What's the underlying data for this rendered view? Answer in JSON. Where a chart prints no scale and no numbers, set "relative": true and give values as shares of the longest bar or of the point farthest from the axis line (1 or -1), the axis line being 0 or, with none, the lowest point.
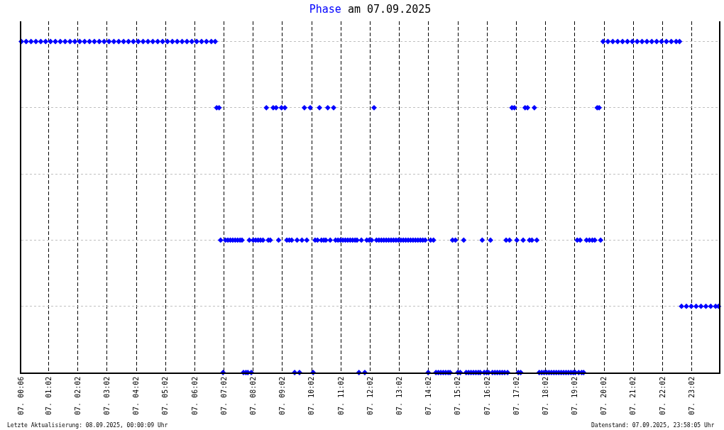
{
  "chart_data": {
    "type": "scatter",
    "title": "Phase am 07.09.2025",
    "annotations": [
      "Letzte Aktualisierung: 08.09.2025, 00:00:09 Uhr",
      "Datenstand: 07.09.2025, 23:58:05 Uhr"
    ],
    "relative": true,
    "marker": "diamond",
    "grid": true,
    "xlim": [
      "2025-09-07T00:06",
      "2025-09-07T23:58"
    ],
    "xticks": [
      {
        "value": "2025-09-07T00:06",
        "label": "07. 00:06"
      },
      {
        "value": "2025-09-07T01:02",
        "label": "07. 01:02"
      },
      {
        "value": "2025-09-07T02:02",
        "label": "07. 02:02"
      },
      {
        "value": "2025-09-07T03:02",
        "label": "07. 03:02"
      },
      {
        "value": "2025-09-07T04:02",
        "label": "07. 04:02"
      },
      {
        "value": "2025-09-07T05:02",
        "label": "07. 05:02"
      },
      {
        "value": "2025-09-07T06:02",
        "label": "07. 06:02"
      },
      {
        "value": "2025-09-07T07:02",
        "label": "07. 07:02"
      },
      {
        "value": "2025-09-07T08:02",
        "label": "07. 08:02"
      },
      {
        "value": "2025-09-07T09:02",
        "label": "07. 09:02"
      },
      {
        "value": "2025-09-07T10:02",
        "label": "07. 10:02"
      },
      {
        "value": "2025-09-07T11:02",
        "label": "07. 11:02"
      },
      {
        "value": "2025-09-07T12:02",
        "label": "07. 12:02"
      },
      {
        "value": "2025-09-07T13:02",
        "label": "07. 13:02"
      },
      {
        "value": "2025-09-07T14:02",
        "label": "07. 14:02"
      },
      {
        "value": "2025-09-07T15:02",
        "label": "07. 15:02"
      },
      {
        "value": "2025-09-07T16:02",
        "label": "07. 16:02"
      },
      {
        "value": "2025-09-07T17:02",
        "label": "07. 17:02"
      },
      {
        "value": "2025-09-07T18:02",
        "label": "07. 18:02"
      },
      {
        "value": "2025-09-07T19:02",
        "label": "07. 19:02"
      },
      {
        "value": "2025-09-07T20:02",
        "label": "07. 20:02"
      },
      {
        "value": "2025-09-07T21:02",
        "label": "07. 21:02"
      },
      {
        "value": "2025-09-07T22:02",
        "label": "07. 22:02"
      },
      {
        "value": "2025-09-07T23:02",
        "label": "07. 23:02"
      }
    ],
    "x": [
      "2025-09-07T00:06",
      "2025-09-07T00:16",
      "2025-09-07T00:26",
      "2025-09-07T00:36",
      "2025-09-07T00:46",
      "2025-09-07T00:56",
      "2025-09-07T01:06",
      "2025-09-07T01:16",
      "2025-09-07T01:26",
      "2025-09-07T01:36",
      "2025-09-07T01:46",
      "2025-09-07T01:56",
      "2025-09-07T02:06",
      "2025-09-07T02:16",
      "2025-09-07T02:26",
      "2025-09-07T02:36",
      "2025-09-07T02:46",
      "2025-09-07T02:56",
      "2025-09-07T03:06",
      "2025-09-07T03:16",
      "2025-09-07T03:26",
      "2025-09-07T03:36",
      "2025-09-07T03:46",
      "2025-09-07T03:56",
      "2025-09-07T04:06",
      "2025-09-07T04:16",
      "2025-09-07T04:26",
      "2025-09-07T04:36",
      "2025-09-07T04:46",
      "2025-09-07T04:56",
      "2025-09-07T05:06",
      "2025-09-07T05:16",
      "2025-09-07T05:26",
      "2025-09-07T05:36",
      "2025-09-07T05:46",
      "2025-09-07T05:56",
      "2025-09-07T06:06",
      "2025-09-07T06:16",
      "2025-09-07T06:26",
      "2025-09-07T06:36",
      "2025-09-07T06:44",
      "2025-09-07T06:47",
      "2025-09-07T06:52",
      "2025-09-07T06:55",
      "2025-09-07T07:00",
      "2025-09-07T07:05",
      "2025-09-07T07:10",
      "2025-09-07T07:15",
      "2025-09-07T07:20",
      "2025-09-07T07:25",
      "2025-09-07T07:30",
      "2025-09-07T07:35",
      "2025-09-07T07:39",
      "2025-09-07T07:42",
      "2025-09-07T07:47",
      "2025-09-07T07:51",
      "2025-09-07T07:54",
      "2025-09-07T07:58",
      "2025-09-07T08:02",
      "2025-09-07T08:07",
      "2025-09-07T08:12",
      "2025-09-07T08:17",
      "2025-09-07T08:22",
      "2025-09-07T08:29",
      "2025-09-07T08:33",
      "2025-09-07T08:37",
      "2025-09-07T08:43",
      "2025-09-07T08:49",
      "2025-09-07T08:54",
      "2025-09-07T09:00",
      "2025-09-07T09:07",
      "2025-09-07T09:11",
      "2025-09-07T09:16",
      "2025-09-07T09:21",
      "2025-09-07T09:27",
      "2025-09-07T09:32",
      "2025-09-07T09:37",
      "2025-09-07T09:42",
      "2025-09-07T09:47",
      "2025-09-07T09:52",
      "2025-09-07T09:59",
      "2025-09-07T10:05",
      "2025-09-07T10:09",
      "2025-09-07T10:14",
      "2025-09-07T10:18",
      "2025-09-07T10:22",
      "2025-09-07T10:27",
      "2025-09-07T10:31",
      "2025-09-07T10:35",
      "2025-09-07T10:40",
      "2025-09-07T10:47",
      "2025-09-07T10:51",
      "2025-09-07T10:56",
      "2025-09-07T11:01",
      "2025-09-07T11:06",
      "2025-09-07T11:11",
      "2025-09-07T11:16",
      "2025-09-07T11:21",
      "2025-09-07T11:26",
      "2025-09-07T11:31",
      "2025-09-07T11:35",
      "2025-09-07T11:39",
      "2025-09-07T11:44",
      "2025-09-07T11:51",
      "2025-09-07T11:55",
      "2025-09-07T12:00",
      "2025-09-07T12:05",
      "2025-09-07T12:10",
      "2025-09-07T12:15",
      "2025-09-07T12:20",
      "2025-09-07T12:25",
      "2025-09-07T12:30",
      "2025-09-07T12:35",
      "2025-09-07T12:40",
      "2025-09-07T12:45",
      "2025-09-07T12:50",
      "2025-09-07T12:55",
      "2025-09-07T13:00",
      "2025-09-07T13:05",
      "2025-09-07T13:10",
      "2025-09-07T13:15",
      "2025-09-07T13:20",
      "2025-09-07T13:25",
      "2025-09-07T13:30",
      "2025-09-07T13:35",
      "2025-09-07T13:40",
      "2025-09-07T13:45",
      "2025-09-07T13:50",
      "2025-09-07T13:55",
      "2025-09-07T14:01",
      "2025-09-07T14:06",
      "2025-09-07T14:12",
      "2025-09-07T14:17",
      "2025-09-07T14:22",
      "2025-09-07T14:27",
      "2025-09-07T14:32",
      "2025-09-07T14:37",
      "2025-09-07T14:42",
      "2025-09-07T14:46",
      "2025-09-07T14:51",
      "2025-09-07T14:57",
      "2025-09-07T15:02",
      "2025-09-07T15:07",
      "2025-09-07T15:14",
      "2025-09-07T15:19",
      "2025-09-07T15:24",
      "2025-09-07T15:29",
      "2025-09-07T15:34",
      "2025-09-07T15:39",
      "2025-09-07T15:44",
      "2025-09-07T15:48",
      "2025-09-07T15:52",
      "2025-09-07T15:56",
      "2025-09-07T16:01",
      "2025-09-07T16:05",
      "2025-09-07T16:09",
      "2025-09-07T16:13",
      "2025-09-07T16:18",
      "2025-09-07T16:23",
      "2025-09-07T16:28",
      "2025-09-07T16:33",
      "2025-09-07T16:38",
      "2025-09-07T16:41",
      "2025-09-07T16:44",
      "2025-09-07T16:48",
      "2025-09-07T16:53",
      "2025-09-07T16:58",
      "2025-09-07T17:03",
      "2025-09-07T17:06",
      "2025-09-07T17:11",
      "2025-09-07T17:16",
      "2025-09-07T17:20",
      "2025-09-07T17:25",
      "2025-09-07T17:29",
      "2025-09-07T17:34",
      "2025-09-07T17:39",
      "2025-09-07T17:44",
      "2025-09-07T17:49",
      "2025-09-07T17:54",
      "2025-09-07T17:59",
      "2025-09-07T18:04",
      "2025-09-07T18:09",
      "2025-09-07T18:14",
      "2025-09-07T18:19",
      "2025-09-07T18:24",
      "2025-09-07T18:29",
      "2025-09-07T18:34",
      "2025-09-07T18:39",
      "2025-09-07T18:44",
      "2025-09-07T18:49",
      "2025-09-07T18:54",
      "2025-09-07T18:59",
      "2025-09-07T19:03",
      "2025-09-07T19:07",
      "2025-09-07T19:10",
      "2025-09-07T19:13",
      "2025-09-07T19:16",
      "2025-09-07T19:20",
      "2025-09-07T19:26",
      "2025-09-07T19:32",
      "2025-09-07T19:38",
      "2025-09-07T19:43",
      "2025-09-07T19:48",
      "2025-09-07T19:52",
      "2025-09-07T19:55",
      "2025-09-07T20:00",
      "2025-09-07T20:10",
      "2025-09-07T20:20",
      "2025-09-07T20:30",
      "2025-09-07T20:40",
      "2025-09-07T20:50",
      "2025-09-07T21:00",
      "2025-09-07T21:10",
      "2025-09-07T21:20",
      "2025-09-07T21:30",
      "2025-09-07T21:40",
      "2025-09-07T21:50",
      "2025-09-07T22:00",
      "2025-09-07T22:10",
      "2025-09-07T22:20",
      "2025-09-07T22:30",
      "2025-09-07T22:37",
      "2025-09-07T22:41",
      "2025-09-07T22:51",
      "2025-09-07T23:01",
      "2025-09-07T23:11",
      "2025-09-07T23:21",
      "2025-09-07T23:31",
      "2025-09-07T23:41",
      "2025-09-07T23:51",
      "2025-09-07T23:57"
    ],
    "series": [
      {
        "color": "#0000ff",
        "values": [
          1,
          1,
          1,
          1,
          1,
          1,
          1,
          1,
          1,
          1,
          1,
          1,
          1,
          1,
          1,
          1,
          1,
          1,
          1,
          1,
          1,
          1,
          1,
          1,
          1,
          1,
          1,
          1,
          1,
          1,
          1,
          1,
          1,
          1,
          1,
          1,
          1,
          1,
          1,
          1,
          1,
          0.8,
          0.8,
          0.4,
          0,
          0.4,
          0.4,
          0.4,
          0.4,
          0.4,
          0.4,
          0.4,
          0.4,
          0,
          0,
          0,
          0.4,
          0,
          0.4,
          0.4,
          0.4,
          0.4,
          0.4,
          0.8,
          0.4,
          0.4,
          0.8,
          0.8,
          0.4,
          0.8,
          0.8,
          0.4,
          0.4,
          0.4,
          0,
          0.4,
          0,
          0.4,
          0.8,
          0.4,
          0.8,
          0,
          0.4,
          0.4,
          0.8,
          0.4,
          0.4,
          0.4,
          0.8,
          0.4,
          0.8,
          0.4,
          0.4,
          0.4,
          0.4,
          0.4,
          0.4,
          0.4,
          0.4,
          0.4,
          0.4,
          0,
          0.4,
          0,
          0.4,
          0.4,
          0.4,
          0.8,
          0.4,
          0.4,
          0.4,
          0.4,
          0.4,
          0.4,
          0.4,
          0.4,
          0.4,
          0.4,
          0.4,
          0.4,
          0.4,
          0.4,
          0.4,
          0.4,
          0.4,
          0.4,
          0.4,
          0.4,
          0.4,
          0,
          0.4,
          0.4,
          0,
          0,
          0,
          0,
          0,
          0,
          0,
          0.4,
          0.4,
          0,
          0,
          0.4,
          0,
          0,
          0,
          0,
          0,
          0,
          0,
          0.4,
          0,
          0,
          0,
          0.4,
          0,
          0,
          0,
          0,
          0,
          0,
          0.4,
          0,
          0.4,
          0.8,
          0.8,
          0.4,
          0,
          0,
          0.4,
          0.8,
          0.8,
          0.4,
          0.4,
          0.8,
          0.4,
          0,
          0,
          0,
          0,
          0,
          0,
          0,
          0,
          0,
          0,
          0,
          0,
          0,
          0,
          0,
          0,
          0.4,
          0,
          0.4,
          0,
          0,
          0.4,
          0.4,
          0.4,
          0.4,
          0.8,
          0.8,
          0.4,
          1,
          1,
          1,
          1,
          1,
          1,
          1,
          1,
          1,
          1,
          1,
          1,
          1,
          1,
          1,
          1,
          1,
          0.2,
          0.2,
          0.2,
          0.2,
          0.2,
          0.2,
          0.2,
          0.2,
          0.2
        ]
      }
    ]
  }
}
